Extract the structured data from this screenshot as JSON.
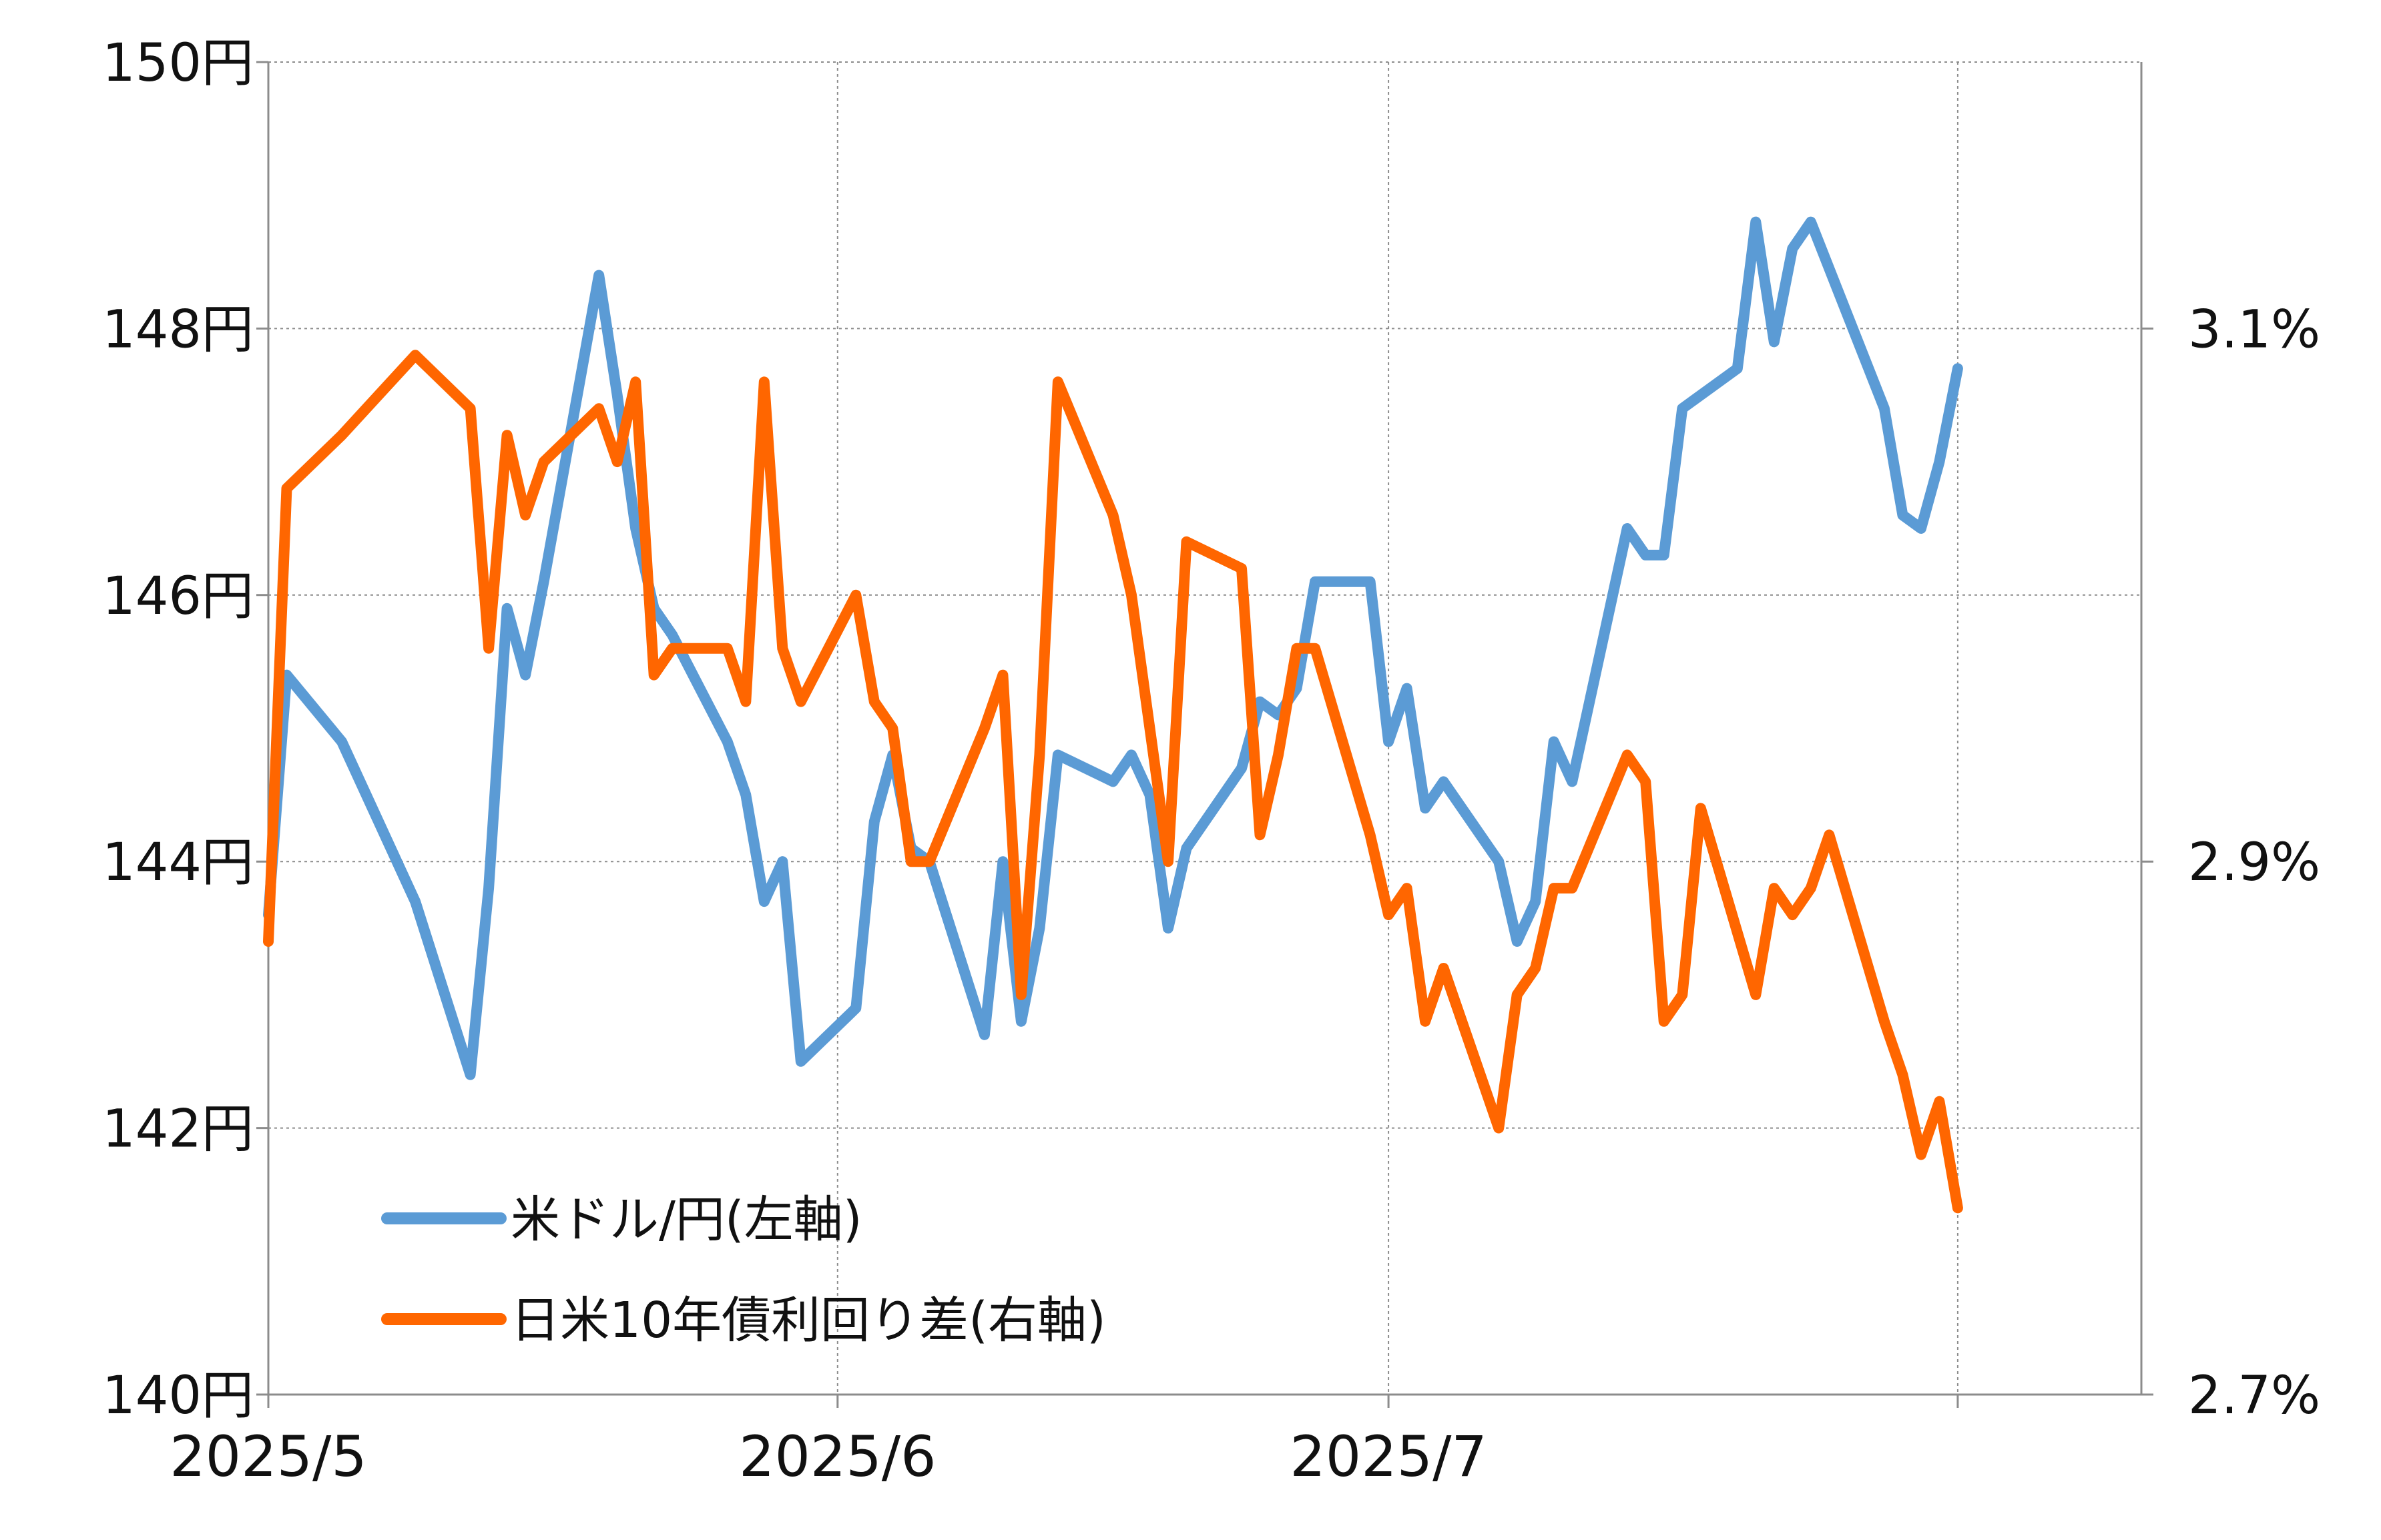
{
  "chart_data": {
    "type": "line",
    "title": "",
    "xlabel": "",
    "ylabel": "",
    "x_ticks": [
      "2025/5",
      "2025/6",
      "2025/7"
    ],
    "y_left": {
      "range": [
        140,
        150
      ],
      "ticks": [
        "150円",
        "148円",
        "146円",
        "144円",
        "142円",
        "140円"
      ],
      "tick_values": [
        150,
        148,
        146,
        144,
        142,
        140
      ]
    },
    "y_right": {
      "range": [
        2.7,
        3.2
      ],
      "ticks": [
        "3.1%",
        "2.9%",
        "2.7%"
      ],
      "tick_values": [
        3.1,
        2.9,
        2.7
      ]
    },
    "grid": true,
    "legend_position": "bottom-left",
    "colors": {
      "usd_jpy": "#5b9bd5",
      "spread": "#ff6600",
      "grid": "#8c8c8c"
    },
    "series": [
      {
        "name": "米ドル/円(左軸)",
        "axis": "left",
        "points": [
          [
            "2025-05-01",
            143.6
          ],
          [
            "2025-05-02",
            145.4
          ],
          [
            "2025-05-05",
            144.9
          ],
          [
            "2025-05-09",
            143.7
          ],
          [
            "2025-05-12",
            142.4
          ],
          [
            "2025-05-13",
            143.8
          ],
          [
            "2025-05-14",
            145.9
          ],
          [
            "2025-05-15",
            145.4
          ],
          [
            "2025-05-16",
            146.1
          ],
          [
            "2025-05-19",
            148.4
          ],
          [
            "2025-05-20",
            147.5
          ],
          [
            "2025-05-21",
            146.5
          ],
          [
            "2025-05-22",
            145.9
          ],
          [
            "2025-05-23",
            145.7
          ],
          [
            "2025-05-26",
            144.9
          ],
          [
            "2025-05-27",
            144.5
          ],
          [
            "2025-05-28",
            143.7
          ],
          [
            "2025-05-29",
            144.0
          ],
          [
            "2025-05-30",
            142.5
          ],
          [
            "2025-06-02",
            142.9
          ],
          [
            "2025-06-03",
            144.3
          ],
          [
            "2025-06-04",
            144.8
          ],
          [
            "2025-06-05",
            144.1
          ],
          [
            "2025-06-06",
            144.0
          ],
          [
            "2025-06-09",
            142.7
          ],
          [
            "2025-06-10",
            144.0
          ],
          [
            "2025-06-11",
            142.8
          ],
          [
            "2025-06-12",
            143.5
          ],
          [
            "2025-06-13",
            144.8
          ],
          [
            "2025-06-16",
            144.6
          ],
          [
            "2025-06-17",
            144.8
          ],
          [
            "2025-06-18",
            144.5
          ],
          [
            "2025-06-19",
            143.5
          ],
          [
            "2025-06-20",
            144.1
          ],
          [
            "2025-06-23",
            144.7
          ],
          [
            "2025-06-24",
            145.2
          ],
          [
            "2025-06-25",
            145.1
          ],
          [
            "2025-06-26",
            145.3
          ],
          [
            "2025-06-27",
            146.1
          ],
          [
            "2025-06-30",
            146.1
          ],
          [
            "2025-07-01",
            144.9
          ],
          [
            "2025-07-02",
            145.3
          ],
          [
            "2025-07-03",
            144.4
          ],
          [
            "2025-07-04",
            144.6
          ],
          [
            "2025-07-07",
            144.0
          ],
          [
            "2025-07-08",
            143.4
          ],
          [
            "2025-07-09",
            143.7
          ],
          [
            "2025-07-10",
            144.9
          ],
          [
            "2025-07-11",
            144.6
          ],
          [
            "2025-07-14",
            146.5
          ],
          [
            "2025-07-15",
            146.3
          ],
          [
            "2025-07-16",
            146.3
          ],
          [
            "2025-07-17",
            147.4
          ],
          [
            "2025-07-20",
            147.7
          ],
          [
            "2025-07-21",
            148.8
          ],
          [
            "2025-07-22",
            147.9
          ],
          [
            "2025-07-23",
            148.6
          ],
          [
            "2025-07-24",
            148.8
          ],
          [
            "2025-07-28",
            147.4
          ],
          [
            "2025-07-29",
            146.6
          ],
          [
            "2025-07-30",
            146.5
          ],
          [
            "2025-07-31",
            147.0
          ],
          [
            "2025-08-01",
            147.7
          ]
        ]
      },
      {
        "name": "日米10年債利回り差(右軸)",
        "axis": "right",
        "points": [
          [
            "2025-05-01",
            2.87
          ],
          [
            "2025-05-02",
            3.04
          ],
          [
            "2025-05-05",
            3.06
          ],
          [
            "2025-05-09",
            3.09
          ],
          [
            "2025-05-12",
            3.07
          ],
          [
            "2025-05-13",
            2.98
          ],
          [
            "2025-05-14",
            3.06
          ],
          [
            "2025-05-15",
            3.03
          ],
          [
            "2025-05-16",
            3.05
          ],
          [
            "2025-05-19",
            3.07
          ],
          [
            "2025-05-20",
            3.05
          ],
          [
            "2025-05-21",
            3.08
          ],
          [
            "2025-05-22",
            2.97
          ],
          [
            "2025-05-23",
            2.98
          ],
          [
            "2025-05-26",
            2.98
          ],
          [
            "2025-05-27",
            2.96
          ],
          [
            "2025-05-28",
            3.08
          ],
          [
            "2025-05-29",
            2.98
          ],
          [
            "2025-05-30",
            2.96
          ],
          [
            "2025-06-02",
            3.0
          ],
          [
            "2025-06-03",
            2.96
          ],
          [
            "2025-06-04",
            2.95
          ],
          [
            "2025-06-05",
            2.9
          ],
          [
            "2025-06-06",
            2.9
          ],
          [
            "2025-06-09",
            2.95
          ],
          [
            "2025-06-10",
            2.97
          ],
          [
            "2025-06-11",
            2.85
          ],
          [
            "2025-06-12",
            2.94
          ],
          [
            "2025-06-13",
            3.08
          ],
          [
            "2025-06-16",
            3.03
          ],
          [
            "2025-06-17",
            3.0
          ],
          [
            "2025-06-18",
            2.95
          ],
          [
            "2025-06-19",
            2.9
          ],
          [
            "2025-06-20",
            3.02
          ],
          [
            "2025-06-23",
            3.01
          ],
          [
            "2025-06-24",
            2.91
          ],
          [
            "2025-06-25",
            2.94
          ],
          [
            "2025-06-26",
            2.98
          ],
          [
            "2025-06-27",
            2.98
          ],
          [
            "2025-06-30",
            2.91
          ],
          [
            "2025-07-01",
            2.88
          ],
          [
            "2025-07-02",
            2.89
          ],
          [
            "2025-07-03",
            2.84
          ],
          [
            "2025-07-04",
            2.86
          ],
          [
            "2025-07-07",
            2.8
          ],
          [
            "2025-07-08",
            2.85
          ],
          [
            "2025-07-09",
            2.86
          ],
          [
            "2025-07-10",
            2.89
          ],
          [
            "2025-07-11",
            2.89
          ],
          [
            "2025-07-14",
            2.94
          ],
          [
            "2025-07-15",
            2.93
          ],
          [
            "2025-07-16",
            2.84
          ],
          [
            "2025-07-17",
            2.85
          ],
          [
            "2025-07-18",
            2.92
          ],
          [
            "2025-07-21",
            2.85
          ],
          [
            "2025-07-22",
            2.89
          ],
          [
            "2025-07-23",
            2.88
          ],
          [
            "2025-07-24",
            2.89
          ],
          [
            "2025-07-25",
            2.91
          ],
          [
            "2025-07-28",
            2.84
          ],
          [
            "2025-07-29",
            2.82
          ],
          [
            "2025-07-30",
            2.79
          ],
          [
            "2025-07-31",
            2.81
          ],
          [
            "2025-08-01",
            2.77
          ]
        ]
      }
    ]
  }
}
